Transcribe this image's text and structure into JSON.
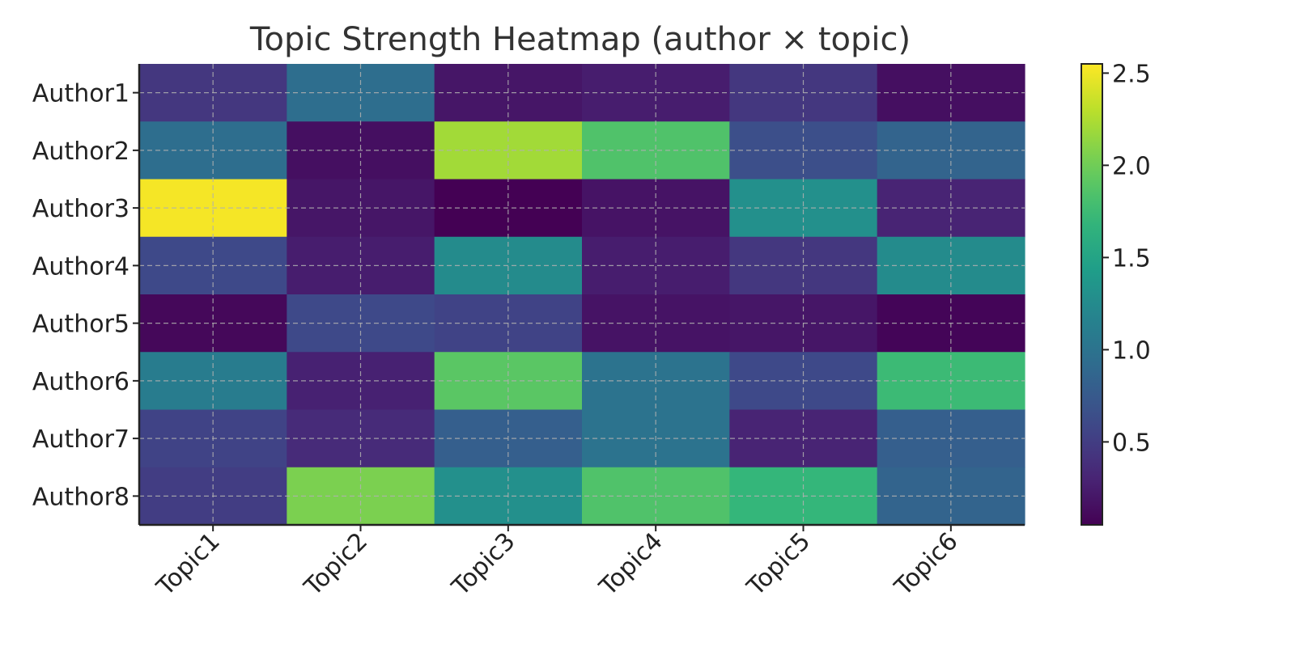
{
  "chart_data": {
    "type": "heatmap",
    "title": "Topic Strength Heatmap (author × topic)",
    "xlabel": "",
    "ylabel": "",
    "x_categories": [
      "Topic1",
      "Topic2",
      "Topic3",
      "Topic4",
      "Topic5",
      "Topic6"
    ],
    "y_categories": [
      "Author1",
      "Author2",
      "Author3",
      "Author4",
      "Author5",
      "Author6",
      "Author7",
      "Author8"
    ],
    "values": [
      [
        0.45,
        0.95,
        0.2,
        0.25,
        0.45,
        0.15
      ],
      [
        0.95,
        0.15,
        2.2,
        1.85,
        0.65,
        0.85
      ],
      [
        2.52,
        0.2,
        0.05,
        0.18,
        1.3,
        0.3
      ],
      [
        0.6,
        0.25,
        1.25,
        0.25,
        0.45,
        1.25
      ],
      [
        0.1,
        0.6,
        0.55,
        0.18,
        0.2,
        0.08
      ],
      [
        1.1,
        0.28,
        1.9,
        1.0,
        0.6,
        1.75
      ],
      [
        0.55,
        0.35,
        0.8,
        1.0,
        0.3,
        0.8
      ],
      [
        0.5,
        2.05,
        1.3,
        1.85,
        1.7,
        0.85
      ]
    ],
    "colormap": "viridis",
    "colorbar": {
      "min": 0.05,
      "max": 2.55,
      "ticks": [
        0.5,
        1.0,
        1.5,
        2.0,
        2.5
      ]
    },
    "grid": true
  }
}
